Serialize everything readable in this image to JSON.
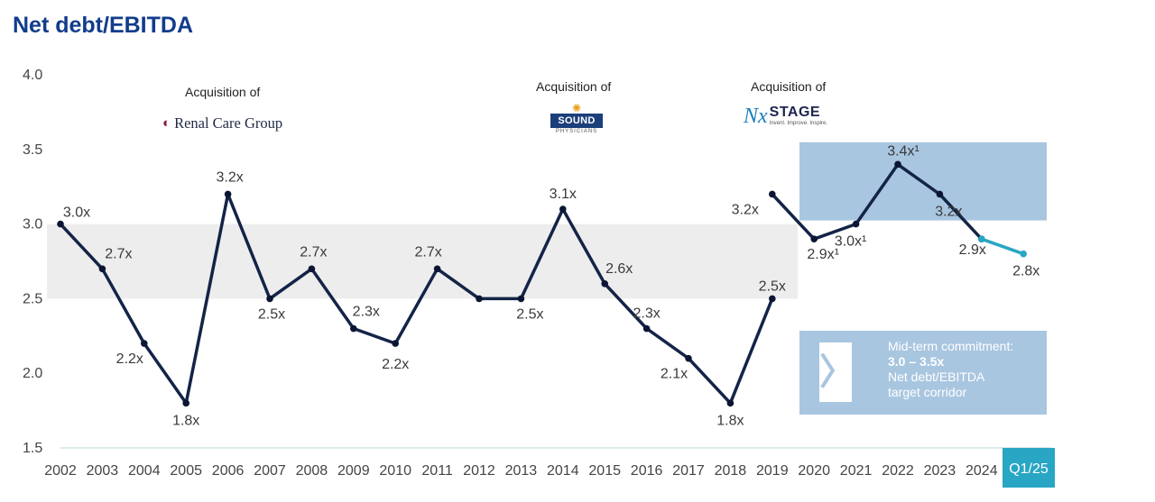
{
  "title": "Net debt/EBITDA",
  "acquisitions": [
    {
      "label": "Acquisition of",
      "logo": "Renal Care Group"
    },
    {
      "label": "Acquisition of",
      "logo_main": "SOUND",
      "logo_sub": "PHYSICIANS"
    },
    {
      "label": "Acquisition of",
      "logo_mark": "Nx",
      "logo_main": "STAGE",
      "logo_sub": "Invent. Improve. Inspire."
    }
  ],
  "commitment": {
    "line1": "Mid-term commitment:",
    "line2": "3.0 – 3.5x",
    "line3": "Net debt/EBITDA",
    "line4": "target corridor",
    "arrow": "〉"
  },
  "badge": "Q1/25",
  "colors": {
    "title": "#123c8c",
    "line": "#132447",
    "line_post2019": "#132447",
    "q125": "#29a6c4",
    "corridor_old": "#eeeded",
    "corridor_new": "#a9c6e0"
  },
  "chart_data": {
    "type": "line",
    "title": "Net debt/EBITDA",
    "ylim": [
      1.5,
      4.0
    ],
    "yticks": [
      "1.5",
      "2.0",
      "2.5",
      "3.0",
      "3.5",
      "4.0"
    ],
    "xtick_labels": [
      "2002",
      "2003",
      "2004",
      "2005",
      "2006",
      "2007",
      "2008",
      "2009",
      "2010",
      "2011",
      "2012",
      "2013",
      "2014",
      "2015",
      "2016",
      "2017",
      "2018",
      "2019",
      "2020",
      "2021",
      "2022",
      "2023",
      "2024",
      "Q1/25"
    ],
    "series": [
      {
        "x": [
          "2002",
          "2003",
          "2004",
          "2005",
          "2006",
          "2007",
          "2008",
          "2009",
          "2010",
          "2011",
          "2012",
          "2013",
          "2014",
          "2015",
          "2016",
          "2017",
          "2018",
          "2019"
        ],
        "values": [
          3.0,
          2.7,
          2.2,
          1.8,
          3.2,
          2.5,
          2.7,
          2.3,
          2.2,
          2.7,
          2.5,
          2.5,
          3.1,
          2.6,
          2.3,
          2.1,
          1.8,
          2.5
        ],
        "labels": [
          "3.0x",
          "2.7x",
          "2.2x",
          "1.8x",
          "3.2x",
          "2.5x",
          "2.7x",
          "2.3x",
          "2.2x",
          "2.7x",
          "",
          "2.5x",
          "3.1x",
          "2.6x",
          "2.3x",
          "2.1x",
          "1.8x",
          "2.5x"
        ]
      },
      {
        "x": [
          "2019",
          "2020",
          "2021",
          "2022",
          "2023",
          "2024"
        ],
        "values": [
          3.2,
          2.9,
          3.0,
          3.4,
          3.2,
          2.9
        ],
        "labels": [
          "3.2x",
          "2.9x¹",
          "3.0x¹",
          "3.4x¹",
          "3.2x",
          "2.9x"
        ]
      },
      {
        "x": [
          "2024",
          "Q1/25"
        ],
        "values": [
          2.9,
          2.8
        ],
        "labels": [
          "",
          "2.8x"
        ]
      }
    ],
    "corridors": [
      {
        "from": "2002",
        "to": "2019",
        "range": [
          2.5,
          3.0
        ]
      },
      {
        "from": "2020",
        "to": "Q1/25",
        "range": [
          3.0,
          3.5
        ]
      }
    ]
  }
}
